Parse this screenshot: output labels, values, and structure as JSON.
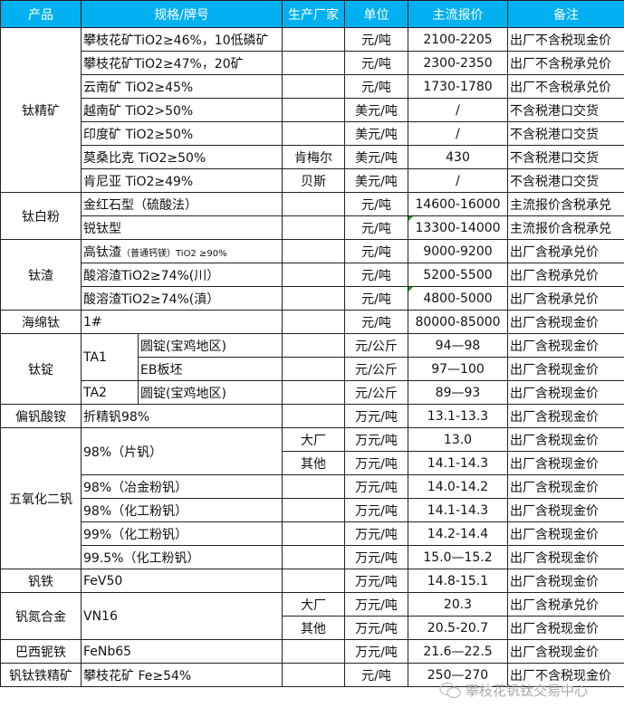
{
  "header": {
    "product": "产品",
    "spec": "规格/牌号",
    "maker": "生产厂家",
    "unit": "单位",
    "price": "主流报价",
    "note": "备注"
  },
  "colors": {
    "header_bg": "#00b0f0",
    "header_text": "#ffffff",
    "comment_marker": "#1a9a1a"
  },
  "groups": [
    {
      "product": "钛精矿",
      "rows": [
        {
          "spec": "攀枝花矿TiO2≥46%，10低磷矿",
          "maker": "",
          "unit": "元/吨",
          "price": "2100-2205",
          "note": "出厂不含税现金价"
        },
        {
          "spec": "攀枝花矿TiO2≥47%，20矿",
          "maker": "",
          "unit": "元/吨",
          "price": "2300-2350",
          "note": "出厂不含税承兑价"
        },
        {
          "spec": "云南矿 TiO2≥45%",
          "maker": "",
          "unit": "元/吨",
          "price": "1730-1780",
          "note": "出厂不含税承兑价"
        },
        {
          "spec": "越南矿 TiO2>50%",
          "maker": "",
          "unit": "美元/吨",
          "price": "/",
          "note": "不含税港口交货"
        },
        {
          "spec": "印度矿 TiO2≥50%",
          "maker": "",
          "unit": "美元/吨",
          "price": "/",
          "note": "不含税港口交货"
        },
        {
          "spec": "莫桑比克 TiO2≥50%",
          "maker": "肯梅尔",
          "unit": "美元/吨",
          "price": "430",
          "note": "不含税港口交货"
        },
        {
          "spec": "肯尼亚 TiO2≥49%",
          "maker": "贝斯",
          "unit": "美元/吨",
          "price": "/",
          "note": "不含税港口交货"
        }
      ]
    },
    {
      "product": "钛白粉",
      "rows": [
        {
          "spec": "金红石型（硫酸法）",
          "maker": "",
          "unit": "元/吨",
          "price": "14600-16000",
          "note": "主流报价含税承兑"
        },
        {
          "spec": "锐钛型",
          "maker": "",
          "unit": "元/吨",
          "price": "13300-14000",
          "note": "主流报价含税承兑",
          "comment": true
        }
      ]
    },
    {
      "product": "钛渣",
      "rows": [
        {
          "spec": "高钛渣",
          "spec_small": "（普通钙镁）TiO2 ≥90%",
          "maker": "",
          "unit": "元/吨",
          "price": "9000-9200",
          "note": "出厂含税承兑价"
        },
        {
          "spec": "酸溶渣TiO2≥74%(川）",
          "maker": "",
          "unit": "元/吨",
          "price": "5200-5500",
          "note": "出厂含税承兑价"
        },
        {
          "spec": "酸溶渣TiO2≥74%(滇）",
          "maker": "",
          "unit": "元/吨",
          "price": "4800-5000",
          "note": "出厂含税承兑价",
          "comment": true
        }
      ]
    },
    {
      "product": "海绵钛",
      "rows": [
        {
          "spec": "1#",
          "maker": "",
          "unit": "元/吨",
          "price": "80000-85000",
          "note": "出厂含税现金价"
        }
      ]
    },
    {
      "product": "钛锭",
      "rows": [
        {
          "grade": "TA1",
          "spec": "圆锭(宝鸡地区)",
          "maker": "",
          "unit": "元/公斤",
          "price": "94—98",
          "note": "出厂含税现金价"
        },
        {
          "grade": "TA1",
          "spec": "EB板坯",
          "maker": "",
          "unit": "元/公斤",
          "price": "97—100",
          "note": "出厂含税现金价"
        },
        {
          "grade": "TA2",
          "spec": "圆锭(宝鸡地区)",
          "maker": "",
          "unit": "元/公斤",
          "price": "89—93",
          "note": "出厂含税现金价"
        }
      ]
    },
    {
      "product": "偏钒酸铵",
      "rows": [
        {
          "spec": "折精钒98%",
          "maker": "",
          "unit": "万元/吨",
          "price": "13.1-13.3",
          "note": "出厂含税现金价"
        }
      ]
    },
    {
      "product": "五氧化二钒",
      "rows": [
        {
          "spec": "98%（片钒）",
          "maker": "大厂",
          "unit": "万元/吨",
          "price": "13.0",
          "note": "出厂含税现金价"
        },
        {
          "spec": "98%（片钒）",
          "maker": "其他",
          "unit": "万元/吨",
          "price": "14.1-14.3",
          "note": "出厂含税现金价"
        },
        {
          "spec": "98%（冶金粉钒）",
          "maker": "",
          "unit": "万元/吨",
          "price": "14.0-14.2",
          "note": "出厂含税现金价"
        },
        {
          "spec": "98%（化工粉钒）",
          "maker": "",
          "unit": "万元/吨",
          "price": "14.1-14.3",
          "note": "出厂含税现金价"
        },
        {
          "spec": "99%（化工粉钒）",
          "maker": "",
          "unit": "万元/吨",
          "price": "14.2-14.4",
          "note": "出厂含税现金价"
        },
        {
          "spec": "99.5%（化工粉钒）",
          "maker": "",
          "unit": "万元/吨",
          "price": "15.0—15.2",
          "note": "出厂含税现金价"
        }
      ]
    },
    {
      "product": "钒铁",
      "rows": [
        {
          "spec": "FeV50",
          "maker": "",
          "unit": "万元/吨",
          "price": "14.8-15.1",
          "note": "出厂含税现金价"
        }
      ]
    },
    {
      "product": "钒氮合金",
      "rows": [
        {
          "spec": "VN16",
          "maker": "大厂",
          "unit": "万元/吨",
          "price": "20.3",
          "note": "出厂含税承兑价"
        },
        {
          "spec": "VN16",
          "maker": "其他",
          "unit": "万元/吨",
          "price": "20.5-20.7",
          "note": "出厂含税现金价"
        }
      ]
    },
    {
      "product": "巴西铌铁",
      "rows": [
        {
          "spec": "FeNb65",
          "maker": "",
          "unit": "万元/吨",
          "price": "21.6—22.5",
          "note": "出厂含税现金价"
        }
      ]
    },
    {
      "product": "钒钛铁精矿",
      "rows": [
        {
          "spec": "攀枝花矿 Fe≥54%",
          "maker": "",
          "unit": "元/吨",
          "price": "250—270",
          "note": "出厂不含税现金价"
        }
      ]
    }
  ],
  "watermark": {
    "icon": "wechat-icon",
    "text": "攀枝花钒钛交易中心"
  }
}
